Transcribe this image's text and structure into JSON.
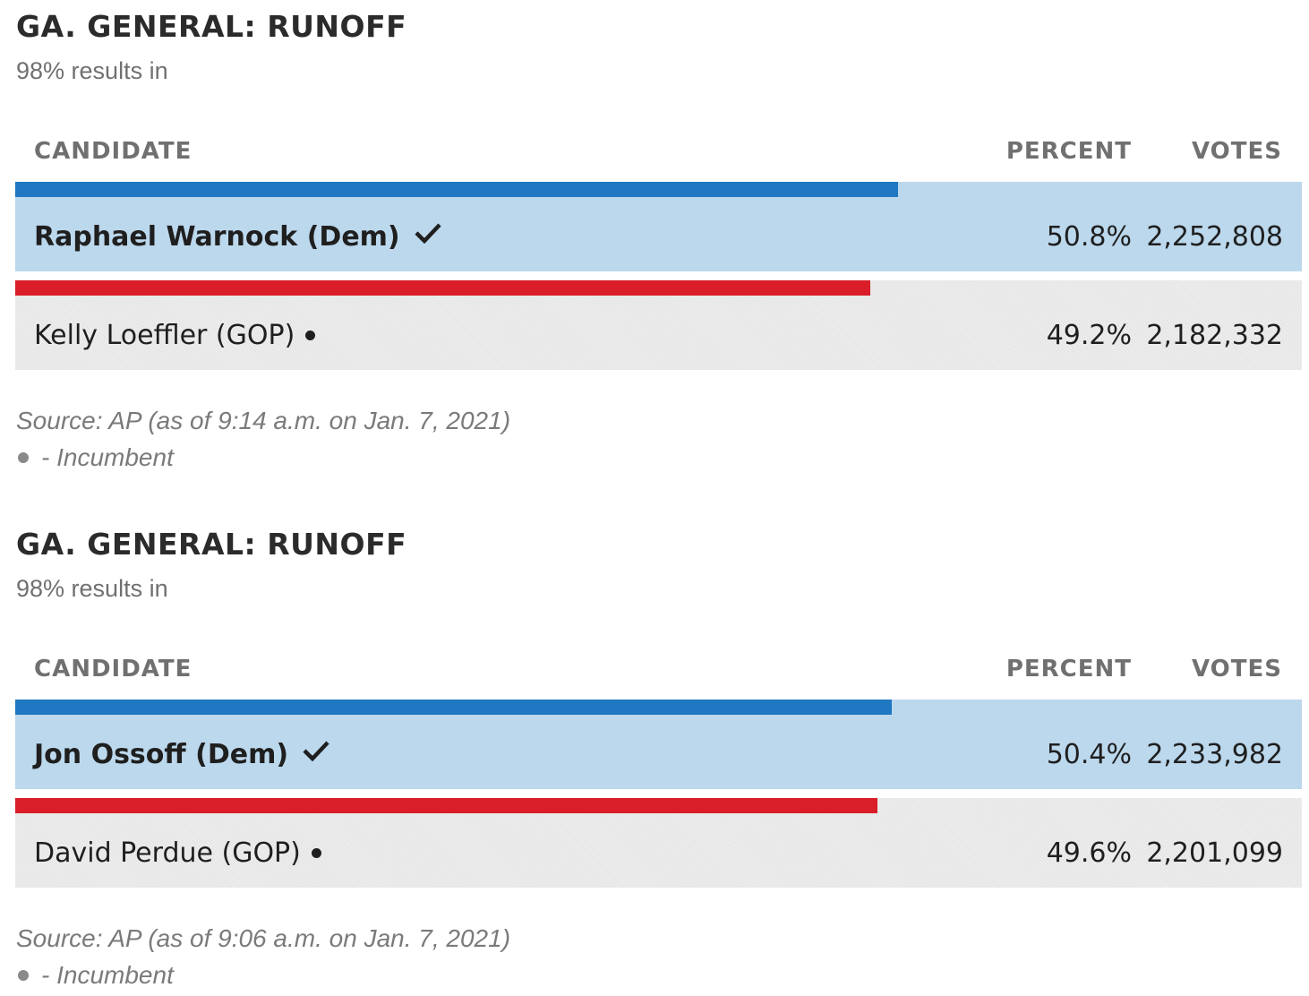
{
  "colors": {
    "dem_bar": "#1f78c1",
    "gop_bar": "#d91e2a",
    "winner_row": "#bcd8ed",
    "other_row": "#ececec"
  },
  "columns": {
    "candidate": "CANDIDATE",
    "percent": "PERCENT",
    "votes": "VOTES"
  },
  "legend": {
    "incumbent_marker_icon": "bullet-icon",
    "incumbent_label": "- Incumbent"
  },
  "races": [
    {
      "title": "GA. GENERAL: RUNOFF",
      "subtitle": "98% results in",
      "source": "Source: AP (as of 9:14 a.m. on Jan. 7, 2021)",
      "candidates": [
        {
          "name": "Raphael Warnock (Dem)",
          "party": "dem",
          "percent": "50.8%",
          "votes": "2,252,808",
          "winner": true,
          "incumbent": false
        },
        {
          "name": "Kelly Loeffler (GOP)",
          "party": "gop",
          "percent": "49.2%",
          "votes": "2,182,332",
          "winner": false,
          "incumbent": true
        }
      ]
    },
    {
      "title": "GA. GENERAL: RUNOFF",
      "subtitle": "98% results in",
      "source": "Source: AP (as of 9:06 a.m. on Jan. 7, 2021)",
      "candidates": [
        {
          "name": "Jon Ossoff (Dem)",
          "party": "dem",
          "percent": "50.4%",
          "votes": "2,233,982",
          "winner": true,
          "incumbent": false
        },
        {
          "name": "David Perdue (GOP)",
          "party": "gop",
          "percent": "49.6%",
          "votes": "2,201,099",
          "winner": false,
          "incumbent": true
        }
      ]
    }
  ],
  "chart_data": [
    {
      "type": "bar",
      "title": "GA. GENERAL: RUNOFF",
      "subtitle": "98% results in",
      "categories": [
        "Raphael Warnock (Dem)",
        "Kelly Loeffler (GOP)"
      ],
      "values": [
        50.8,
        49.2
      ],
      "votes": [
        2252808,
        2182332
      ],
      "bar_scale_max_percent": 74
    },
    {
      "type": "bar",
      "title": "GA. GENERAL: RUNOFF",
      "subtitle": "98% results in",
      "categories": [
        "Jon Ossoff (Dem)",
        "David Perdue (GOP)"
      ],
      "values": [
        50.4,
        49.6
      ],
      "votes": [
        2233982,
        2201099
      ],
      "bar_scale_max_percent": 74
    }
  ]
}
